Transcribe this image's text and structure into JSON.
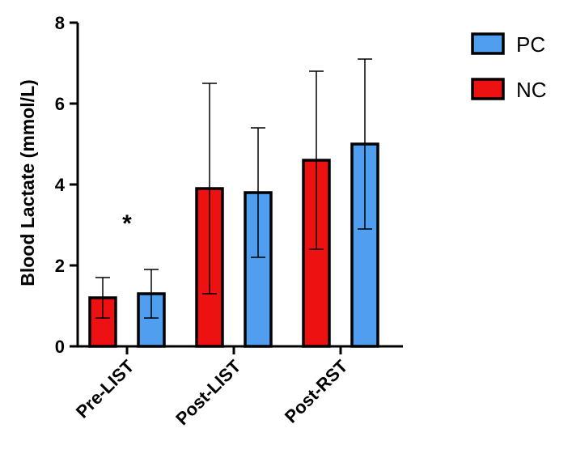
{
  "chart_data": {
    "type": "bar",
    "title": "",
    "xlabel": "",
    "ylabel": "Blood  Lactate (mmol/L)",
    "ylim": [
      0,
      8
    ],
    "yticks": [
      0,
      2,
      4,
      6,
      8
    ],
    "categories": [
      "Pre-LIST",
      "Post-LIST",
      "Post-RST"
    ],
    "series": [
      {
        "name": "NC",
        "color": "#ee1111",
        "values": [
          1.2,
          3.9,
          4.6
        ],
        "errors": [
          0.5,
          2.6,
          2.2
        ]
      },
      {
        "name": "PC",
        "color": "#4f9ef0",
        "values": [
          1.3,
          3.8,
          5.0
        ],
        "errors": [
          0.6,
          1.6,
          2.1
        ]
      }
    ],
    "legend": {
      "placement": "top-right",
      "entries": [
        {
          "label": "PC",
          "color": "#4f9ef0"
        },
        {
          "label": "NC",
          "color": "#ee1111"
        }
      ]
    },
    "annotations": [
      {
        "text": "*",
        "category": "Pre-LIST"
      }
    ],
    "grid": false
  }
}
